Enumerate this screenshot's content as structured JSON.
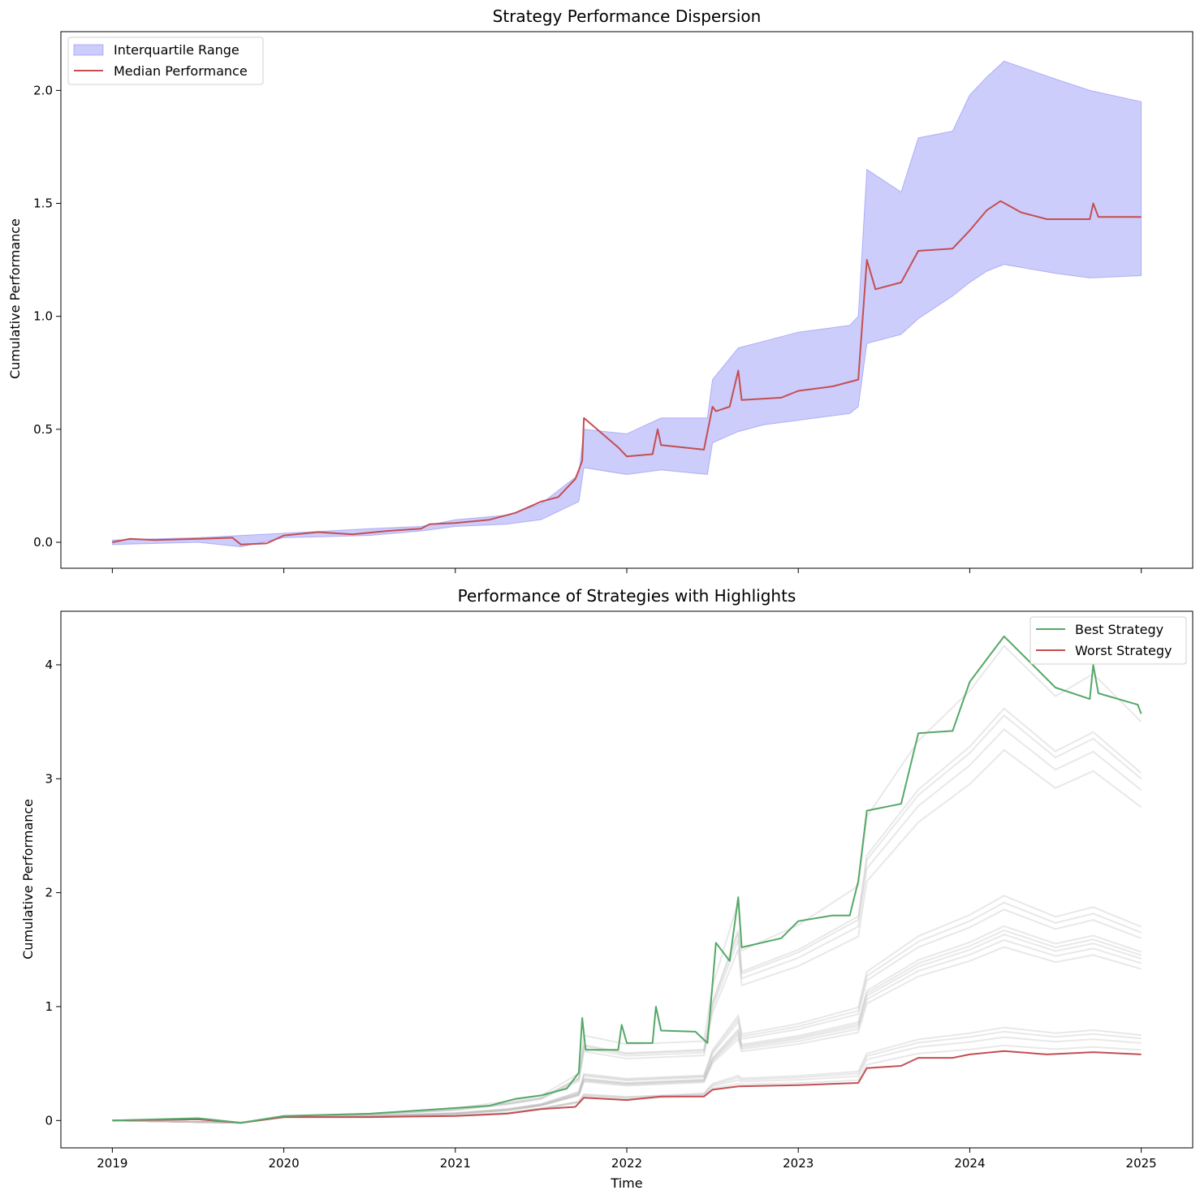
{
  "chart_data": [
    {
      "type": "area",
      "title": "Strategy Performance Dispersion",
      "xlabel": "",
      "ylabel": "Cumulative Performance",
      "xlim": [
        2018.7,
        2025.3
      ],
      "ylim": [
        -0.115,
        2.26
      ],
      "xticks": [
        2019,
        2020,
        2021,
        2022,
        2023,
        2024,
        2025
      ],
      "xtick_labels_shown": false,
      "yticks": [
        0.0,
        0.5,
        1.0,
        1.5,
        2.0
      ],
      "ytick_labels": [
        "0.0",
        "0.5",
        "1.0",
        "1.5",
        "2.0"
      ],
      "legend_position": "upper-left",
      "grid": false,
      "band": {
        "name": "Interquartile Range",
        "color": "#7b7bf5",
        "x": [
          2019.0,
          2019.5,
          2019.75,
          2020.0,
          2020.5,
          2020.8,
          2021.0,
          2021.3,
          2021.5,
          2021.72,
          2021.75,
          2022.0,
          2022.2,
          2022.47,
          2022.5,
          2022.65,
          2022.8,
          2023.0,
          2023.3,
          2023.35,
          2023.4,
          2023.6,
          2023.7,
          2023.9,
          2024.0,
          2024.1,
          2024.2,
          2024.5,
          2024.7,
          2025.0
        ],
        "lower": [
          -0.01,
          0.0,
          -0.02,
          0.02,
          0.03,
          0.05,
          0.07,
          0.08,
          0.1,
          0.18,
          0.33,
          0.3,
          0.32,
          0.3,
          0.44,
          0.49,
          0.52,
          0.54,
          0.57,
          0.6,
          0.88,
          0.92,
          0.99,
          1.09,
          1.15,
          1.2,
          1.23,
          1.19,
          1.17,
          1.18
        ],
        "upper": [
          0.01,
          0.02,
          0.03,
          0.04,
          0.06,
          0.07,
          0.1,
          0.12,
          0.17,
          0.3,
          0.5,
          0.48,
          0.55,
          0.55,
          0.72,
          0.86,
          0.89,
          0.93,
          0.96,
          1.0,
          1.65,
          1.55,
          1.79,
          1.82,
          1.98,
          2.06,
          2.13,
          2.05,
          2.0,
          1.95
        ]
      },
      "series": [
        {
          "name": "Median Performance",
          "color": "#c44e52",
          "x": [
            2019.0,
            2019.1,
            2019.25,
            2019.5,
            2019.7,
            2019.75,
            2019.9,
            2020.0,
            2020.2,
            2020.4,
            2020.6,
            2020.8,
            2020.85,
            2021.0,
            2021.2,
            2021.35,
            2021.5,
            2021.6,
            2021.7,
            2021.74,
            2021.75,
            2021.95,
            2022.0,
            2022.15,
            2022.18,
            2022.2,
            2022.45,
            2022.5,
            2022.52,
            2022.6,
            2022.65,
            2022.67,
            2022.9,
            2023.0,
            2023.2,
            2023.35,
            2023.4,
            2023.45,
            2023.6,
            2023.7,
            2023.9,
            2024.0,
            2024.1,
            2024.18,
            2024.3,
            2024.45,
            2024.7,
            2024.72,
            2024.75,
            2025.0
          ],
          "values": [
            0.0,
            0.015,
            0.01,
            0.015,
            0.02,
            -0.01,
            -0.005,
            0.03,
            0.045,
            0.035,
            0.05,
            0.06,
            0.08,
            0.085,
            0.1,
            0.13,
            0.18,
            0.2,
            0.28,
            0.36,
            0.55,
            0.42,
            0.38,
            0.39,
            0.5,
            0.43,
            0.41,
            0.6,
            0.58,
            0.6,
            0.76,
            0.63,
            0.64,
            0.67,
            0.69,
            0.72,
            1.25,
            1.12,
            1.15,
            1.29,
            1.3,
            1.38,
            1.47,
            1.51,
            1.46,
            1.43,
            1.43,
            1.5,
            1.44,
            1.44
          ]
        }
      ]
    },
    {
      "type": "line",
      "title": "Performance of Strategies with Highlights",
      "xlabel": "Time",
      "ylabel": "Cumulative Performance",
      "xlim": [
        2018.7,
        2025.3
      ],
      "ylim": [
        -0.24,
        4.47
      ],
      "xticks": [
        2019,
        2020,
        2021,
        2022,
        2023,
        2024,
        2025
      ],
      "xtick_labels": [
        "2019",
        "2020",
        "2021",
        "2022",
        "2023",
        "2024",
        "2025"
      ],
      "yticks": [
        0,
        1,
        2,
        3,
        4
      ],
      "ytick_labels": [
        "0",
        "1",
        "2",
        "3",
        "4"
      ],
      "legend_position": "upper-right",
      "grid": false,
      "background_series": {
        "color": "#bdbdbd",
        "x": [
          2019.0,
          2019.75,
          2020.0,
          2020.5,
          2021.0,
          2021.3,
          2021.5,
          2021.72,
          2021.75,
          2022.0,
          2022.45,
          2022.5,
          2022.65,
          2022.67,
          2023.0,
          2023.35,
          2023.4,
          2023.7,
          2024.0,
          2024.2,
          2024.5,
          2024.72,
          2025.0
        ],
        "final_values": [
          0.62,
          0.68,
          0.72,
          0.75,
          1.33,
          1.38,
          1.42,
          1.45,
          1.48,
          1.6,
          1.65,
          1.7,
          2.75,
          2.9,
          3.0,
          3.05,
          3.5
        ]
      },
      "series": [
        {
          "name": "Best Strategy",
          "color": "#55a868",
          "x": [
            2019.0,
            2019.5,
            2019.75,
            2020.0,
            2020.5,
            2020.8,
            2021.0,
            2021.2,
            2021.35,
            2021.5,
            2021.65,
            2021.72,
            2021.74,
            2021.76,
            2021.95,
            2021.97,
            2022.0,
            2022.15,
            2022.17,
            2022.2,
            2022.4,
            2022.47,
            2022.5,
            2022.52,
            2022.6,
            2022.65,
            2022.67,
            2022.9,
            2023.0,
            2023.2,
            2023.3,
            2023.35,
            2023.4,
            2023.6,
            2023.7,
            2023.9,
            2024.0,
            2024.1,
            2024.2,
            2024.5,
            2024.7,
            2024.72,
            2024.75,
            2024.98,
            2025.0
          ],
          "values": [
            0.0,
            0.02,
            -0.02,
            0.04,
            0.06,
            0.09,
            0.11,
            0.13,
            0.19,
            0.22,
            0.28,
            0.42,
            0.9,
            0.62,
            0.62,
            0.84,
            0.68,
            0.68,
            1.0,
            0.79,
            0.78,
            0.68,
            1.2,
            1.56,
            1.4,
            1.96,
            1.52,
            1.6,
            1.75,
            1.8,
            1.8,
            2.1,
            2.72,
            2.78,
            3.4,
            3.42,
            3.85,
            4.05,
            4.25,
            3.8,
            3.7,
            4.0,
            3.75,
            3.65,
            3.57
          ]
        },
        {
          "name": "Worst Strategy",
          "color": "#c44e52",
          "x": [
            2019.0,
            2019.5,
            2019.75,
            2020.0,
            2020.5,
            2021.0,
            2021.3,
            2021.5,
            2021.7,
            2021.75,
            2022.0,
            2022.2,
            2022.45,
            2022.5,
            2022.65,
            2023.0,
            2023.35,
            2023.4,
            2023.6,
            2023.7,
            2023.9,
            2024.0,
            2024.2,
            2024.45,
            2024.72,
            2025.0
          ],
          "values": [
            0.0,
            0.01,
            -0.02,
            0.03,
            0.03,
            0.04,
            0.06,
            0.1,
            0.12,
            0.2,
            0.18,
            0.21,
            0.21,
            0.27,
            0.3,
            0.31,
            0.33,
            0.46,
            0.48,
            0.55,
            0.55,
            0.58,
            0.61,
            0.58,
            0.6,
            0.58
          ]
        }
      ]
    }
  ]
}
